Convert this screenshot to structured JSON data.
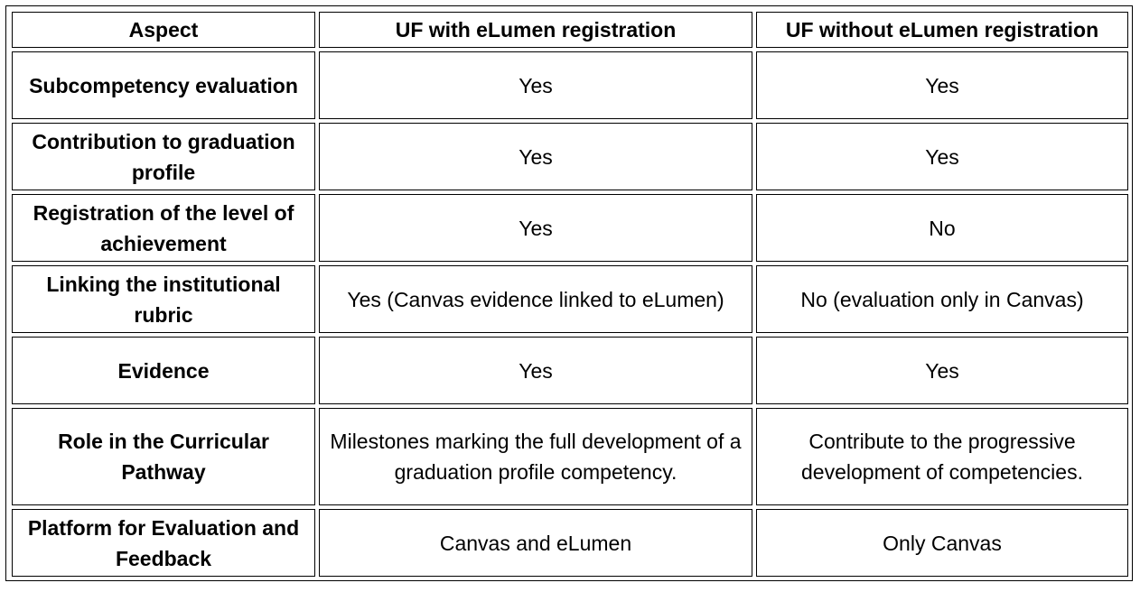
{
  "table": {
    "headers": [
      "Aspect",
      "UF with eLumen registration",
      "UF without eLumen registration"
    ],
    "rows": [
      [
        "Subcompetency evaluation",
        "Yes",
        "Yes"
      ],
      [
        "Contribution to graduation profile",
        "Yes",
        "Yes"
      ],
      [
        "Registration of the level of achievement",
        "Yes",
        "No"
      ],
      [
        "Linking the institutional rubric",
        "Yes (Canvas evidence linked to eLumen)",
        "No (evaluation only in Canvas)"
      ],
      [
        "Evidence",
        "Yes",
        "Yes"
      ],
      [
        "Role in the Curricular Pathway",
        "Milestones marking the full development of a graduation profile competency.",
        "Contribute to the progressive development of competencies."
      ],
      [
        "Platform for Evaluation and Feedback",
        "Canvas and eLumen",
        "Only Canvas"
      ]
    ]
  }
}
